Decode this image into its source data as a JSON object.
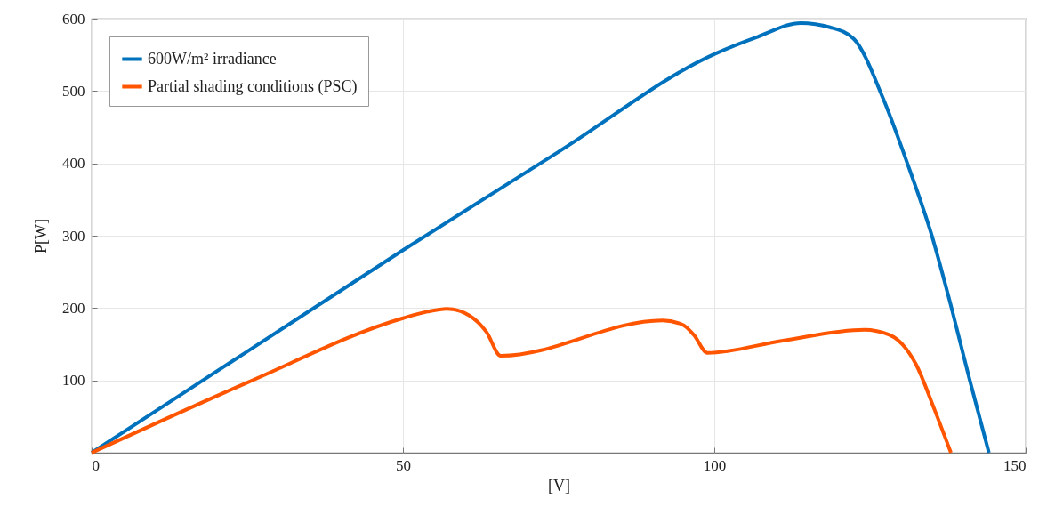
{
  "chart_data": {
    "type": "line",
    "xlabel": "[V]",
    "ylabel": "P[W]",
    "xlim": [
      0,
      150
    ],
    "xticks": [
      0,
      50,
      100,
      150
    ],
    "ylim": [
      0,
      600
    ],
    "yticks": [
      100,
      200,
      300,
      400,
      500,
      600
    ],
    "grid": true,
    "legend": "top left",
    "marker": "none",
    "line_style": "solid",
    "series": [
      {
        "name": "600W/m² irradiance",
        "color": "#0072bd",
        "x": [
          0,
          25,
          50,
          75,
          100,
          107,
          113.9,
          118.6,
          122.4,
          127.1,
          131,
          134.9,
          138.1,
          141,
          144.1
        ],
        "values": [
          0,
          140,
          280,
          416,
          551,
          575,
          594,
          588,
          572,
          490,
          400,
          301,
          200,
          101,
          0
        ]
      },
      {
        "name": "Partial shading conditions (PSC)",
        "color": "#ff5500",
        "x": [
          0,
          25,
          50,
          53.9,
          57,
          60.6,
          63.4,
          65.7,
          91.7,
          94.9,
          96.7,
          98.9,
          111,
          124.1,
          128.1,
          132.4,
          135.3,
          138
        ],
        "values": [
          0,
          97,
          186,
          195,
          199,
          190,
          167,
          134,
          183,
          177,
          163,
          138,
          155,
          170,
          163,
          122,
          61,
          0
        ]
      }
    ]
  }
}
